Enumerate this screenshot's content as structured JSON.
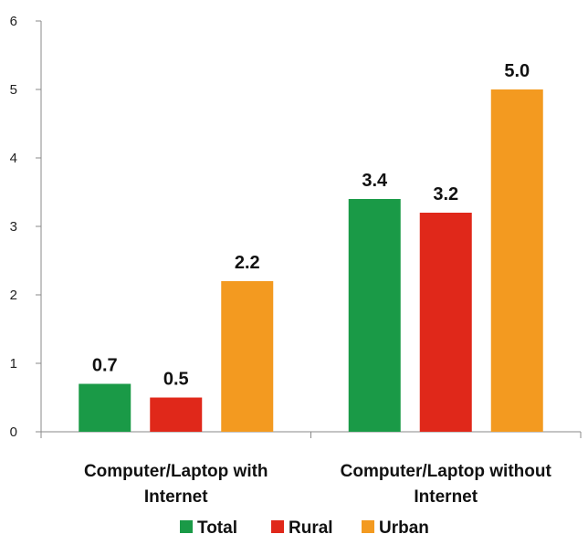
{
  "chart_data": {
    "type": "bar",
    "categories": [
      [
        "Computer/Laptop with",
        "Internet"
      ],
      [
        "Computer/Laptop without",
        "Internet"
      ]
    ],
    "series": [
      {
        "name": "Total",
        "color": "#1a9a47",
        "values": [
          0.7,
          3.4
        ],
        "labels": [
          "0.7",
          "3.4"
        ]
      },
      {
        "name": "Rural",
        "color": "#e0281a",
        "values": [
          0.5,
          3.2
        ],
        "labels": [
          "0.5",
          "3.2"
        ]
      },
      {
        "name": "Urban",
        "color": "#f39a20",
        "values": [
          2.2,
          5.0
        ],
        "labels": [
          "2.2",
          "5.0"
        ]
      }
    ],
    "ylim": [
      0,
      6
    ],
    "yticks": [
      "0",
      "1",
      "2",
      "3",
      "4",
      "5",
      "6"
    ],
    "grid": false,
    "legend": "bottom",
    "title": "",
    "xlabel": "",
    "ylabel": ""
  }
}
